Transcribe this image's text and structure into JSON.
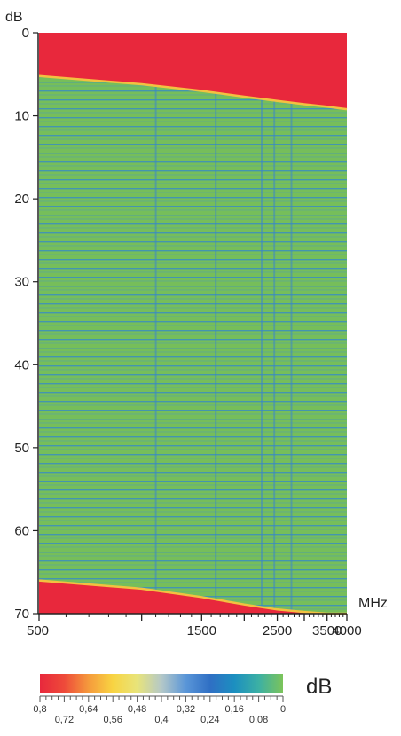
{
  "chart_data": {
    "type": "heatmap",
    "title": "",
    "xlabel": "MHz",
    "ylabel": "dB",
    "x_scale": "log",
    "xlim": [
      500,
      4000
    ],
    "ylim": [
      0,
      70
    ],
    "y_inverted": true,
    "x_ticks": [
      500,
      1500,
      2500,
      3500,
      4000
    ],
    "x_tick_labels": [
      "500",
      "1500",
      "2500",
      "3500",
      "4000"
    ],
    "y_ticks": [
      0,
      10,
      20,
      30,
      40,
      50,
      60,
      70
    ],
    "y_tick_labels": [
      "0",
      "10",
      "20",
      "30",
      "40",
      "50",
      "60",
      "70"
    ],
    "upper_boundary_db": {
      "x": [
        500,
        1000,
        1500,
        2000,
        2500,
        3000,
        3500,
        4000
      ],
      "y": [
        5.2,
        6.2,
        7.0,
        7.7,
        8.2,
        8.6,
        8.9,
        9.2
      ]
    },
    "lower_boundary_db": {
      "x": [
        500,
        1000,
        1500,
        2000,
        2500,
        3000,
        3500,
        4000
      ],
      "y": [
        66.0,
        67.0,
        68.0,
        68.9,
        69.5,
        69.8,
        70.0,
        70.0
      ]
    },
    "upper_region_value": 0.8,
    "lower_region_value": 0.8,
    "dominant_value": 0.0,
    "vertical_features_mhz": [
      1100,
      1650,
      2250,
      2450,
      2750
    ],
    "colorbar": {
      "unit": "dB",
      "min": 0,
      "max": 0.8,
      "reversed": true,
      "major_tick_labels": [
        "0,8",
        "0,64",
        "0,48",
        "0,32",
        "0,16",
        "0"
      ],
      "minor_tick_labels": [
        "0,72",
        "0,56",
        "0,4",
        "0,24",
        "0,08"
      ],
      "colors": [
        "#e8283c",
        "#ee4a3a",
        "#f59a3c",
        "#f8d442",
        "#e8e47a",
        "#b4c8c8",
        "#5a96d8",
        "#2f6fc4",
        "#1c8fc0",
        "#3cb0a4",
        "#7cc45a"
      ]
    }
  }
}
